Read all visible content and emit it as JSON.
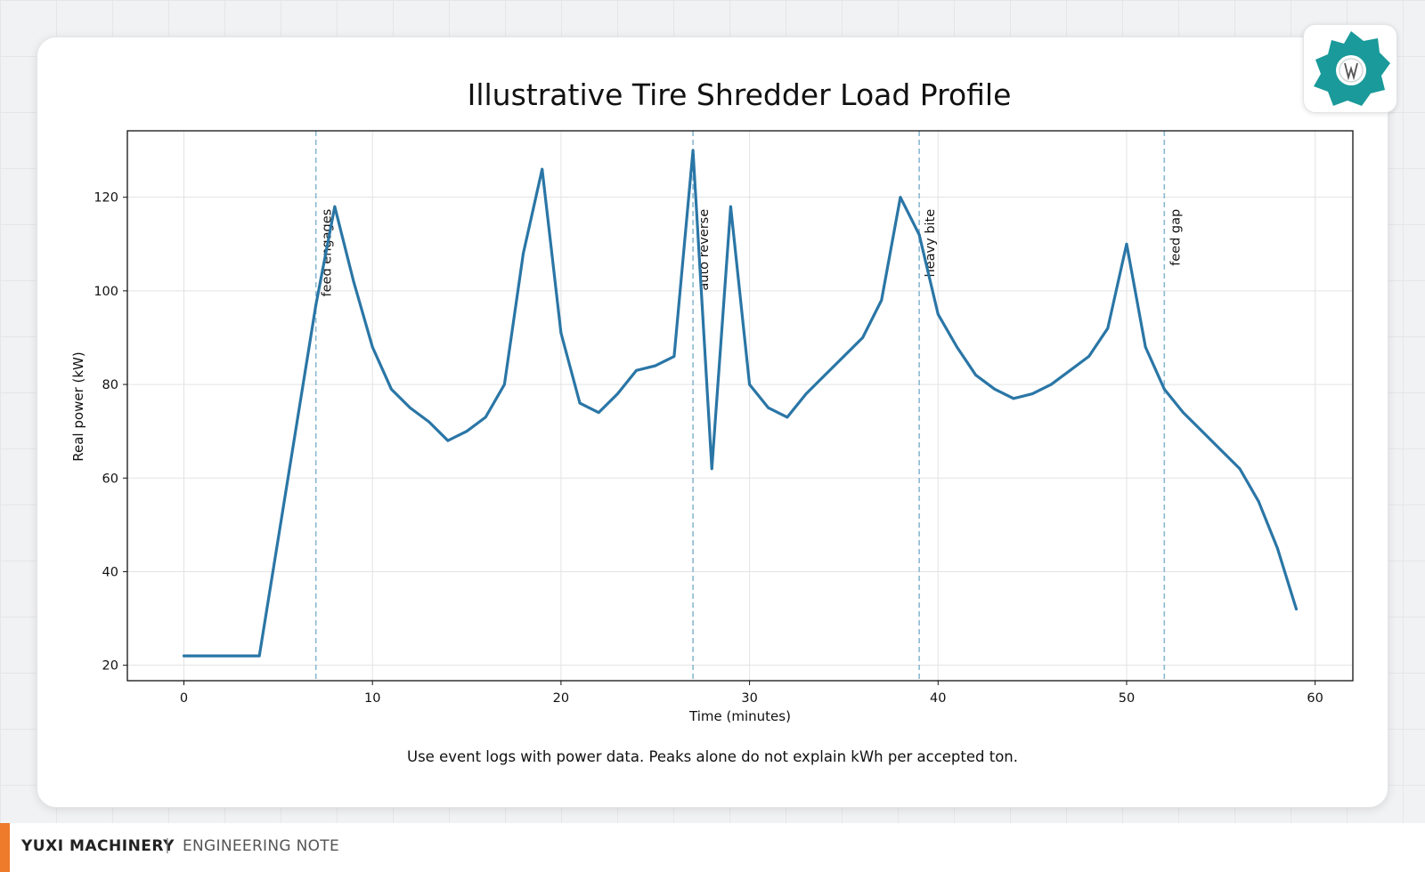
{
  "chart_data": {
    "type": "line",
    "title": "Illustrative Tire Shredder Load Profile",
    "xlabel": "Time (minutes)",
    "ylabel": "Real power (kW)",
    "xlim": [
      -3,
      62
    ],
    "ylim": [
      16.7,
      134.2
    ],
    "xticks": [
      0,
      10,
      20,
      30,
      40,
      50,
      60
    ],
    "yticks": [
      20,
      40,
      60,
      80,
      100,
      120
    ],
    "grid": true,
    "series": [
      {
        "color": "#2a76a6",
        "x": [
          0,
          1,
          2,
          3,
          4,
          5,
          6,
          7,
          8,
          9,
          10,
          11,
          12,
          13,
          14,
          15,
          16,
          17,
          18,
          19,
          20,
          21,
          22,
          23,
          24,
          25,
          26,
          27,
          28,
          29,
          30,
          31,
          32,
          33,
          34,
          35,
          36,
          37,
          38,
          39,
          40,
          41,
          42,
          43,
          44,
          45,
          46,
          47,
          48,
          49,
          50,
          51,
          52,
          53,
          54,
          55,
          56,
          57,
          58,
          59
        ],
        "values": [
          22,
          22,
          22,
          22,
          22,
          47,
          72,
          97,
          118,
          102,
          88,
          79,
          75,
          72,
          68,
          70,
          73,
          80,
          108,
          126,
          91,
          76,
          74,
          78,
          83,
          84,
          86,
          130,
          62,
          118,
          80,
          75,
          73,
          78,
          82,
          86,
          90,
          98,
          120,
          112,
          95,
          88,
          82,
          79,
          77,
          78,
          80,
          83,
          86,
          92,
          110,
          88,
          79,
          74,
          70,
          66,
          62,
          55,
          45,
          32
        ]
      }
    ],
    "annotations": [
      {
        "x": 7,
        "label": "feed engages"
      },
      {
        "x": 27,
        "label": "auto reverse"
      },
      {
        "x": 39,
        "label": "heavy bite"
      },
      {
        "x": 52,
        "label": "feed gap"
      }
    ],
    "annotation_color": "#8ab8d0",
    "caption": "Use event logs with power data. Peaks alone do not explain kWh per accepted ton."
  },
  "footer": {
    "brand": "YUXI MACHINERY",
    "separator": "|",
    "note": "ENGINEERING NOTE",
    "accent_color": "#ee7a2b"
  },
  "logo": {
    "icon": "shredder-gear-logo",
    "color": "#1a9a9a"
  }
}
